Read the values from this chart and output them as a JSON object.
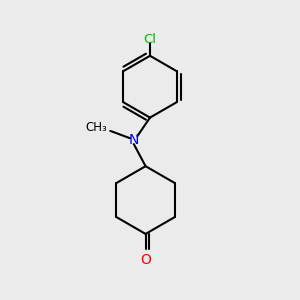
{
  "background_color": "#ebebeb",
  "atom_colors": {
    "Cl": "#00bb00",
    "N": "#0000ff",
    "O": "#ff0000",
    "C": "#000000"
  },
  "bond_color": "#000000",
  "bond_width": 1.5
}
